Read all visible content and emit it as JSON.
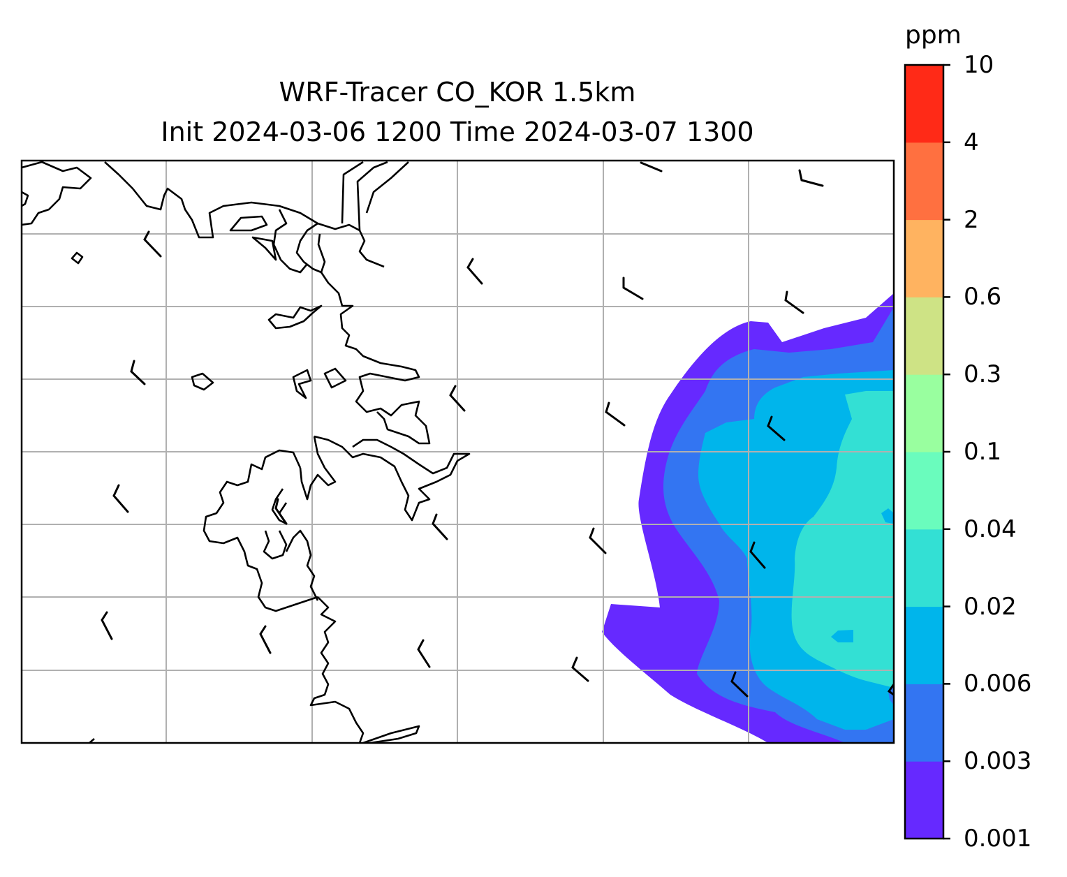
{
  "figure": {
    "title_line1": "WRF-Tracer CO_KOR 1.5km",
    "title_line2": "Init 2024-03-06 1200 Time 2024-03-07 1300"
  },
  "colorbar": {
    "unit": "ppm",
    "levels": [
      "0.001",
      "0.003",
      "0.006",
      "0.02",
      "0.04",
      "0.1",
      "0.3",
      "0.6",
      "2",
      "4",
      "10"
    ],
    "colors": [
      "#6629ff",
      "#3375f2",
      "#00b5eb",
      "#33e0d4",
      "#6afcbd",
      "#99ff9f",
      "#cee385",
      "#ffb360",
      "#ff7040",
      "#ff2a17"
    ]
  },
  "map": {
    "gridlines": true,
    "tracer_plume": "east side of domain, concentrations 0.001–0.04 ppm",
    "wind_barbs": true,
    "coastline_color": "#000000",
    "grid_color": "#b0b0b0"
  }
}
